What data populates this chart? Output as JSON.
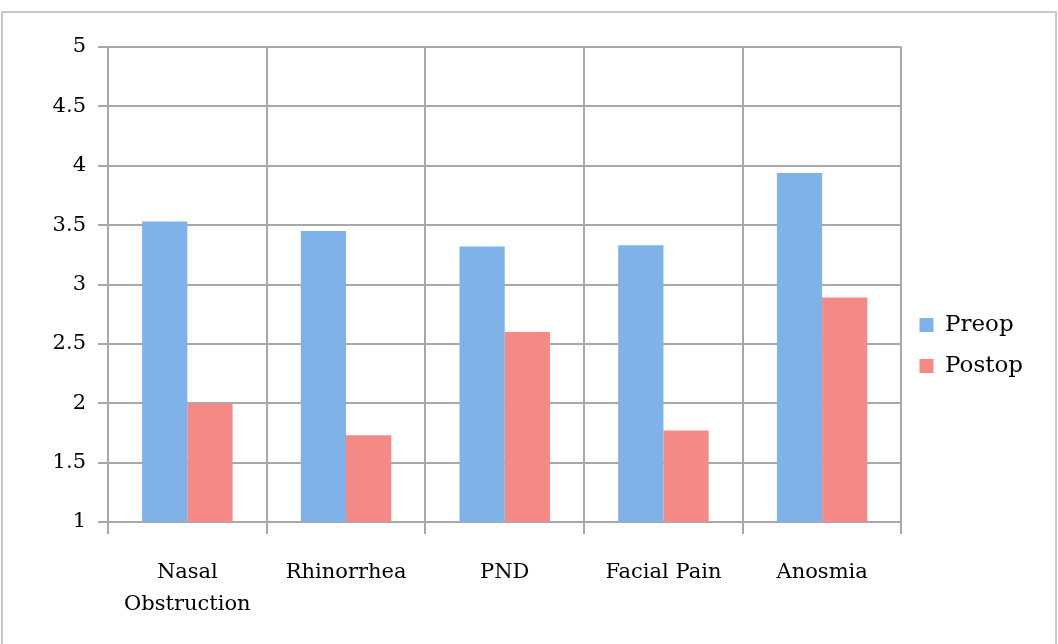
{
  "chart_data": {
    "type": "bar",
    "categories": [
      "Nasal Obstruction",
      "Rhinorrhea",
      "PND",
      "Facial Pain",
      "Anosmia"
    ],
    "series": [
      {
        "name": "Preop",
        "color": "#80b2ea",
        "values": [
          3.53,
          3.45,
          3.32,
          3.33,
          3.94
        ]
      },
      {
        "name": "Postop",
        "color": "#f48986",
        "values": [
          2.0,
          1.73,
          2.6,
          1.77,
          2.89
        ]
      }
    ],
    "ylim": [
      1,
      5
    ],
    "yticks": [
      1,
      1.5,
      2,
      2.5,
      3,
      3.5,
      4,
      4.5,
      5
    ],
    "grid": true,
    "legend": "right"
  }
}
